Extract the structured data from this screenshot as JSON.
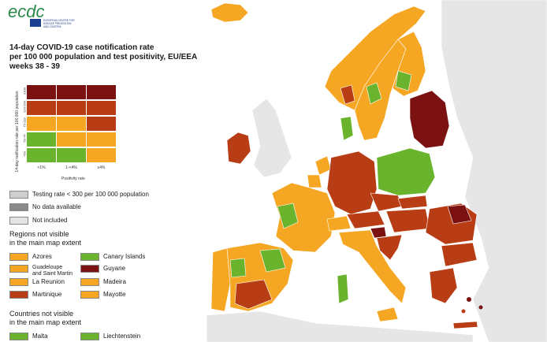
{
  "logo": {
    "wordmark": "ecdc",
    "org_lines": [
      "EUROPEAN CENTRE FOR",
      "DISEASE PREVENTION",
      "AND CONTROL"
    ]
  },
  "title_lines": [
    "14-day COVID-19 case notification rate",
    "per 100 000 population and test positivity, EU/EEA",
    "weeks 38 - 39"
  ],
  "matrix": {
    "y_axis_label": "14-day notification rate per 100 000 population",
    "row_labels": [
      "≥300",
      "120-299",
      "75-119",
      "50-74",
      "<50"
    ],
    "x_axis_label": "Positivity rate",
    "col_labels": [
      "<1%",
      "1-<4%",
      "≥4%"
    ]
  },
  "status_legend": [
    {
      "label": "Testing rate < 300 per 100 000 population",
      "swatch": "#cfcfcf"
    },
    {
      "label": "No data available",
      "swatch": "#8a8a8a"
    },
    {
      "label": "Not included",
      "swatch": "#e4e4e4"
    }
  ],
  "regions_header": [
    "Regions not visible",
    "in the main map extent"
  ],
  "regions": [
    {
      "label": "Azores",
      "swatch": "#f5a623"
    },
    {
      "label": "Canary Islands",
      "swatch": "#6ab42d"
    },
    {
      "label": "Guadeloupe and Saint Martin",
      "swatch": "#f5a623",
      "lines": [
        "Guadeloupe",
        "and Saint Martin"
      ]
    },
    {
      "label": "Guyane",
      "swatch": "#7b1111"
    },
    {
      "label": "La Reunion",
      "swatch": "#f5a623"
    },
    {
      "label": "Madeira",
      "swatch": "#f5a623"
    },
    {
      "label": "Martinique",
      "swatch": "#b83c14"
    },
    {
      "label": "Mayotte",
      "swatch": "#f5a623"
    }
  ],
  "countries_header": [
    "Countries not visible",
    "in the main map extent"
  ],
  "countries": [
    {
      "label": "Malta",
      "swatch": "#6ab42d"
    },
    {
      "label": "Liechtenstein",
      "swatch": "#6ab42d"
    }
  ],
  "colors": {
    "dark_red": "#7b1111",
    "red": "#b83c14",
    "orange": "#f5a623",
    "green": "#6ab42d",
    "grey": "#cfcfcf",
    "sea": "#ffffff",
    "non_eu": "#e6e6e6"
  }
}
